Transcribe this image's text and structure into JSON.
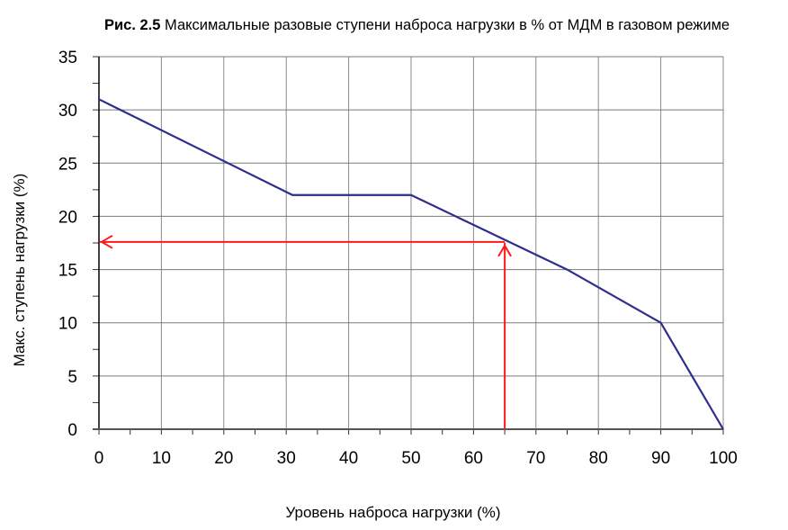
{
  "figure": {
    "prefix": "Рис. 2.5",
    "title": "Максимальные разовые ступени наброса нагрузки в % от МДМ в газовом режиме"
  },
  "chart_data": {
    "type": "line",
    "title": "Рис. 2.5 Максимальные разовые ступени наброса нагрузки в % от МДМ в газовом режиме",
    "xlabel": "Уровень наброса нагрузки (%)",
    "ylabel": "Макс. ступень нагрузки (%)",
    "xlim": [
      0,
      100
    ],
    "ylim": [
      0,
      35
    ],
    "x_ticks": [
      0,
      10,
      20,
      30,
      40,
      50,
      60,
      70,
      80,
      90,
      100
    ],
    "y_ticks": [
      0,
      5,
      10,
      15,
      20,
      25,
      30,
      35
    ],
    "grid": true,
    "legend": null,
    "series": [
      {
        "name": "Макс. ступень нагрузки",
        "color": "#2e2e8c",
        "x": [
          0,
          31,
          50,
          75,
          90,
          100
        ],
        "y": [
          31,
          22,
          22,
          15,
          10,
          0
        ]
      }
    ],
    "annotations": [
      {
        "type": "arrow-path",
        "color": "#ff1a1a",
        "description": "Example reading: load level 65% → max step ≈17.6%",
        "from": [
          65,
          0
        ],
        "corner": [
          65,
          17.6
        ],
        "to": [
          0,
          17.6
        ]
      }
    ]
  }
}
